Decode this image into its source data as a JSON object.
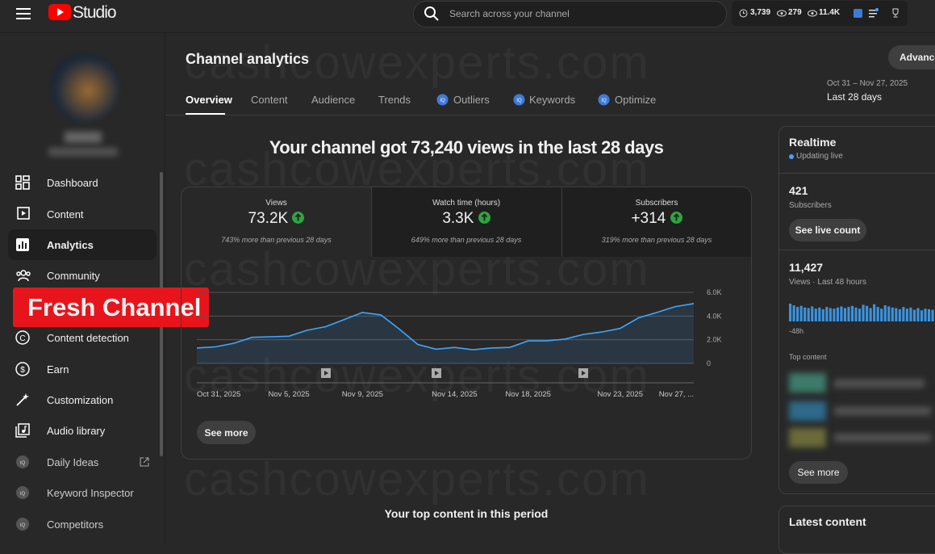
{
  "header": {
    "logo": "Studio",
    "search_placeholder": "Search across your channel",
    "stats": [
      "3,739",
      "279",
      "11.4K"
    ]
  },
  "sidebar": {
    "items": [
      "Dashboard",
      "Content",
      "Analytics",
      "Community",
      "Content detection",
      "Earn",
      "Customization",
      "Audio library",
      "Daily Ideas",
      "Keyword Inspector",
      "Competitors"
    ],
    "overlay": "Fresh Channel"
  },
  "page": {
    "title": "Channel analytics",
    "tabs": [
      "Overview",
      "Content",
      "Audience",
      "Trends",
      "Outliers",
      "Keywords",
      "Optimize"
    ],
    "advanced": "Advanced",
    "date_range": "Oct 31 – Nov 27, 2025",
    "period": "Last 28 days",
    "headline": "Your channel got 73,240 views in the last 28 days",
    "metrics": [
      {
        "label": "Views",
        "value": "73.2K",
        "change": "743% more than previous 28 days"
      },
      {
        "label": "Watch time (hours)",
        "value": "3.3K",
        "change": "649% more than previous 28 days"
      },
      {
        "label": "Subscribers",
        "value": "+314",
        "change": "319% more than previous 28 days"
      }
    ],
    "see_more": "See more",
    "top_content": "Your top content in this period",
    "watermark": "cashcowexperts.com"
  },
  "realtime": {
    "title": "Realtime",
    "status": "Updating live",
    "subscribers": "421",
    "subscribers_label": "Subscribers",
    "live_button": "See live count",
    "views": "11,427",
    "views_label": "Views · Last 48 hours",
    "start_label": "-48h",
    "top_content": "Top content",
    "see_more": "See more",
    "latest": "Latest content"
  },
  "chart_data": [
    {
      "type": "line",
      "categories": [
        "Oct 31, 2025",
        null,
        null,
        null,
        null,
        "Nov 5, 2025",
        null,
        null,
        null,
        "Nov 9, 2025",
        null,
        null,
        null,
        null,
        "Nov 14, 2025",
        null,
        null,
        null,
        "Nov 18, 2025",
        null,
        null,
        null,
        null,
        "Nov 23, 2025",
        null,
        null,
        null,
        "Nov 27, ..."
      ],
      "values": [
        1300,
        1400,
        1700,
        2200,
        2250,
        2300,
        2800,
        3100,
        3700,
        4300,
        4100,
        2900,
        1600,
        1200,
        1350,
        1150,
        1300,
        1350,
        1900,
        1900,
        2050,
        2450,
        2650,
        2950,
        3850,
        4300,
        4800,
        5050
      ],
      "color": "#3ea6ff",
      "ylim": [
        0,
        6000
      ],
      "yticks": [
        0,
        {
          "value": 2000,
          "label": "2.0K"
        },
        {
          "value": 4000,
          "label": "4.0K"
        },
        {
          "value": 6000,
          "label": "6.0K"
        }
      ],
      "grid": true
    },
    {
      "type": "bar",
      "values": [
        320,
        290,
        260,
        280,
        250,
        240,
        270,
        230,
        250,
        220,
        260,
        240,
        230,
        250,
        270,
        240,
        260,
        280,
        250,
        230,
        300,
        280,
        240,
        310,
        260,
        230,
        290,
        270,
        250,
        240,
        220,
        260,
        230,
        250,
        210,
        240,
        200,
        230,
        220,
        210
      ],
      "color": "#3ea6ff"
    }
  ]
}
